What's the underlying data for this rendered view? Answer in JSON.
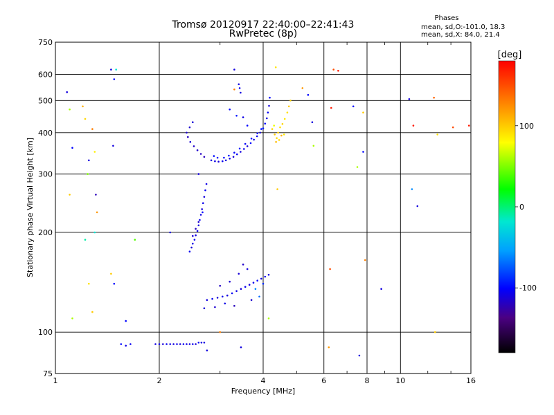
{
  "title_line1": "Tromsø 20120917 22:40:00–22:41:43",
  "title_line2": "RwPretec (8p)",
  "phases_header": "Phases",
  "phases_o": "mean, sd,O:-101.0, 18.3",
  "phases_x": "mean, sd,X:  84.0, 21.4",
  "chart_data": {
    "type": "scatter",
    "xlabel": "Frequency [MHz]",
    "ylabel": "Stationary phase Virtual Height [km]",
    "x_scale": "log",
    "y_scale": "log",
    "xlim": [
      1,
      16
    ],
    "ylim": [
      75,
      750
    ],
    "x_ticks": [
      1,
      2,
      4,
      6,
      8,
      10,
      16
    ],
    "y_ticks": [
      75,
      100,
      200,
      300,
      400,
      500,
      600,
      750
    ],
    "x_tick_labels": [
      "1",
      "2",
      "4",
      "6",
      "8",
      "10",
      "16"
    ],
    "y_tick_labels": [
      "75",
      "100",
      "200",
      "300",
      "400",
      "500",
      "600",
      "750"
    ],
    "grid": true,
    "colorbar": {
      "label": "[deg]",
      "range": [
        -180,
        180
      ],
      "ticks": [
        100,
        0,
        -100
      ],
      "tick_labels": [
        "100",
        "0",
        "-100"
      ]
    },
    "series": [
      {
        "points": [
          [
            2.83,
            330,
            -110
          ],
          [
            2.9,
            328,
            -108
          ],
          [
            2.97,
            327,
            -112
          ],
          [
            3.05,
            328,
            -105
          ],
          [
            3.12,
            330,
            -110
          ],
          [
            3.2,
            334,
            -108
          ],
          [
            3.28,
            338,
            -112
          ],
          [
            3.36,
            344,
            -104
          ],
          [
            3.44,
            350,
            -110
          ],
          [
            3.52,
            357,
            -106
          ],
          [
            3.6,
            364,
            -112
          ],
          [
            3.68,
            372,
            -100
          ],
          [
            3.76,
            381,
            -108
          ],
          [
            3.84,
            390,
            -104
          ],
          [
            3.92,
            400,
            -110
          ],
          [
            4.0,
            412,
            -95
          ],
          [
            4.05,
            426,
            -100
          ],
          [
            4.1,
            442,
            -108
          ],
          [
            4.13,
            460,
            -104
          ],
          [
            4.16,
            482,
            -110
          ],
          [
            4.18,
            510,
            -100
          ],
          [
            2.7,
            338,
            -120
          ],
          [
            2.64,
            345,
            -118
          ],
          [
            2.58,
            354,
            -115
          ],
          [
            2.52,
            364,
            -116
          ],
          [
            2.46,
            375,
            -112
          ],
          [
            2.42,
            388,
            -118
          ],
          [
            2.4,
            400,
            -114
          ],
          [
            2.45,
            415,
            -115
          ],
          [
            2.5,
            430,
            -112
          ],
          [
            2.88,
            340,
            -98
          ],
          [
            2.95,
            336,
            -102
          ],
          [
            3.08,
            336,
            -100
          ],
          [
            3.18,
            341,
            -96
          ],
          [
            3.3,
            348,
            -100
          ],
          [
            3.42,
            358,
            -96
          ],
          [
            3.55,
            370,
            -102
          ],
          [
            3.7,
            384,
            -96
          ],
          [
            3.85,
            398,
            -100
          ],
          [
            3.95,
            410,
            -96
          ],
          [
            3.4,
            560,
            -110
          ],
          [
            3.42,
            545,
            -105
          ],
          [
            3.44,
            528,
            -110
          ],
          [
            3.2,
            470,
            -100
          ],
          [
            3.35,
            450,
            -95
          ],
          [
            3.5,
            445,
            -108
          ],
          [
            3.6,
            420,
            -100
          ],
          [
            4.25,
            410,
            95
          ],
          [
            4.32,
            395,
            100
          ],
          [
            4.38,
            385,
            92
          ],
          [
            4.42,
            400,
            98
          ],
          [
            4.48,
            415,
            90
          ],
          [
            4.55,
            425,
            95
          ],
          [
            4.62,
            440,
            88
          ],
          [
            4.7,
            460,
            92
          ],
          [
            4.75,
            480,
            100
          ],
          [
            4.8,
            500,
            96
          ],
          [
            4.36,
            375,
            105
          ],
          [
            4.45,
            380,
            95
          ],
          [
            4.52,
            392,
            110
          ],
          [
            4.3,
            420,
            75
          ],
          [
            4.6,
            395,
            85
          ]
        ]
      },
      {
        "points": [
          [
            2.45,
            175,
            -105
          ],
          [
            2.48,
            180,
            -112
          ],
          [
            2.5,
            185,
            -108
          ],
          [
            2.53,
            190,
            -104
          ],
          [
            2.55,
            196,
            -110
          ],
          [
            2.58,
            202,
            -106
          ],
          [
            2.6,
            210,
            -110
          ],
          [
            2.62,
            218,
            -104
          ],
          [
            2.64,
            226,
            -108
          ],
          [
            2.66,
            235,
            -112
          ],
          [
            2.68,
            245,
            -106
          ],
          [
            2.7,
            256,
            -110
          ],
          [
            2.72,
            268,
            -104
          ],
          [
            2.74,
            280,
            -108
          ],
          [
            2.55,
            205,
            -118
          ],
          [
            2.6,
            215,
            -115
          ],
          [
            2.67,
            230,
            -100
          ],
          [
            2.5,
            195,
            -112
          ]
        ]
      },
      {
        "points": [
          [
            2.75,
            125,
            -110
          ],
          [
            2.85,
            126,
            -104
          ],
          [
            2.95,
            127,
            -112
          ],
          [
            3.05,
            128,
            -106
          ],
          [
            3.15,
            129,
            -110
          ],
          [
            3.25,
            131,
            -104
          ],
          [
            3.35,
            133,
            -108
          ],
          [
            3.45,
            135,
            -112
          ],
          [
            3.55,
            137,
            -104
          ],
          [
            3.65,
            139,
            -110
          ],
          [
            3.75,
            141,
            -106
          ],
          [
            3.85,
            143,
            -100
          ],
          [
            3.95,
            145,
            -108
          ],
          [
            4.05,
            147,
            -104
          ],
          [
            4.15,
            149,
            -110
          ],
          [
            3.0,
            138,
            -118
          ],
          [
            3.2,
            142,
            -114
          ],
          [
            3.4,
            150,
            -112
          ],
          [
            3.5,
            160,
            -116
          ],
          [
            3.6,
            155,
            -110
          ],
          [
            3.3,
            120,
            -120
          ],
          [
            3.7,
            125,
            -115
          ],
          [
            2.7,
            118,
            -112
          ],
          [
            2.9,
            119,
            -114
          ],
          [
            3.1,
            122,
            -108
          ],
          [
            3.8,
            135,
            -60
          ],
          [
            3.9,
            128,
            -70
          ],
          [
            4.0,
            140,
            -90
          ]
        ]
      },
      {
        "points": [
          [
            1.55,
            92,
            -100
          ],
          [
            1.6,
            91,
            -108
          ],
          [
            1.65,
            92,
            -104
          ],
          [
            1.95,
            92,
            -110
          ],
          [
            2.0,
            92,
            -106
          ],
          [
            2.05,
            92,
            -112
          ],
          [
            2.1,
            92,
            -104
          ],
          [
            2.15,
            92,
            -108
          ],
          [
            2.2,
            92,
            -110
          ],
          [
            2.25,
            92,
            -106
          ],
          [
            2.3,
            92,
            -112
          ],
          [
            2.35,
            92,
            -104
          ],
          [
            2.4,
            92,
            -108
          ],
          [
            2.45,
            92,
            -110
          ],
          [
            2.5,
            92,
            -106
          ],
          [
            2.55,
            92,
            -112
          ],
          [
            2.6,
            93,
            -104
          ],
          [
            2.65,
            93,
            -108
          ],
          [
            2.7,
            93,
            -110
          ]
        ]
      },
      {
        "points": [
          [
            1.08,
            530,
            -110
          ],
          [
            1.1,
            470,
            60
          ],
          [
            1.12,
            360,
            -100
          ],
          [
            1.1,
            260,
            100
          ],
          [
            1.12,
            110,
            60
          ],
          [
            1.2,
            480,
            110
          ],
          [
            1.22,
            440,
            95
          ],
          [
            1.25,
            330,
            -110
          ],
          [
            1.24,
            300,
            50
          ],
          [
            1.22,
            190,
            -10
          ],
          [
            1.25,
            140,
            90
          ],
          [
            1.28,
            410,
            130
          ],
          [
            1.3,
            350,
            85
          ],
          [
            1.31,
            260,
            -120
          ],
          [
            1.32,
            230,
            120
          ],
          [
            1.3,
            200,
            -20
          ],
          [
            1.28,
            115,
            100
          ],
          [
            1.45,
            620,
            -110
          ],
          [
            1.48,
            580,
            -100
          ],
          [
            1.5,
            620,
            -20
          ],
          [
            1.47,
            365,
            -110
          ],
          [
            1.45,
            150,
            100
          ],
          [
            1.48,
            140,
            -100
          ],
          [
            1.7,
            190,
            40
          ],
          [
            1.6,
            108,
            -100
          ],
          [
            2.15,
            200,
            -110
          ],
          [
            2.6,
            300,
            -110
          ],
          [
            2.75,
            88,
            -110
          ],
          [
            3.0,
            100,
            130
          ],
          [
            3.45,
            90,
            -110
          ],
          [
            3.3,
            620,
            -110
          ],
          [
            3.3,
            540,
            130
          ],
          [
            4.35,
            630,
            90
          ],
          [
            4.15,
            110,
            60
          ],
          [
            4.4,
            270,
            100
          ],
          [
            5.2,
            545,
            120
          ],
          [
            5.4,
            520,
            -100
          ],
          [
            5.55,
            430,
            -110
          ],
          [
            5.6,
            365,
            60
          ],
          [
            6.2,
            90,
            120
          ],
          [
            6.25,
            155,
            150
          ],
          [
            6.3,
            475,
            170
          ],
          [
            6.4,
            620,
            150
          ],
          [
            6.6,
            615,
            170
          ],
          [
            7.3,
            480,
            -100
          ],
          [
            7.5,
            315,
            60
          ],
          [
            7.6,
            85,
            -110
          ],
          [
            7.8,
            350,
            -100
          ],
          [
            7.8,
            460,
            100
          ],
          [
            7.9,
            165,
            130
          ],
          [
            8.8,
            135,
            -110
          ],
          [
            10.6,
            505,
            -110
          ],
          [
            10.9,
            420,
            170
          ],
          [
            10.8,
            270,
            -60
          ],
          [
            11.2,
            240,
            -110
          ],
          [
            12.5,
            510,
            140
          ],
          [
            12.8,
            395,
            90
          ],
          [
            12.6,
            100,
            100
          ],
          [
            14.2,
            415,
            150
          ],
          [
            15.8,
            420,
            170
          ]
        ]
      }
    ]
  }
}
